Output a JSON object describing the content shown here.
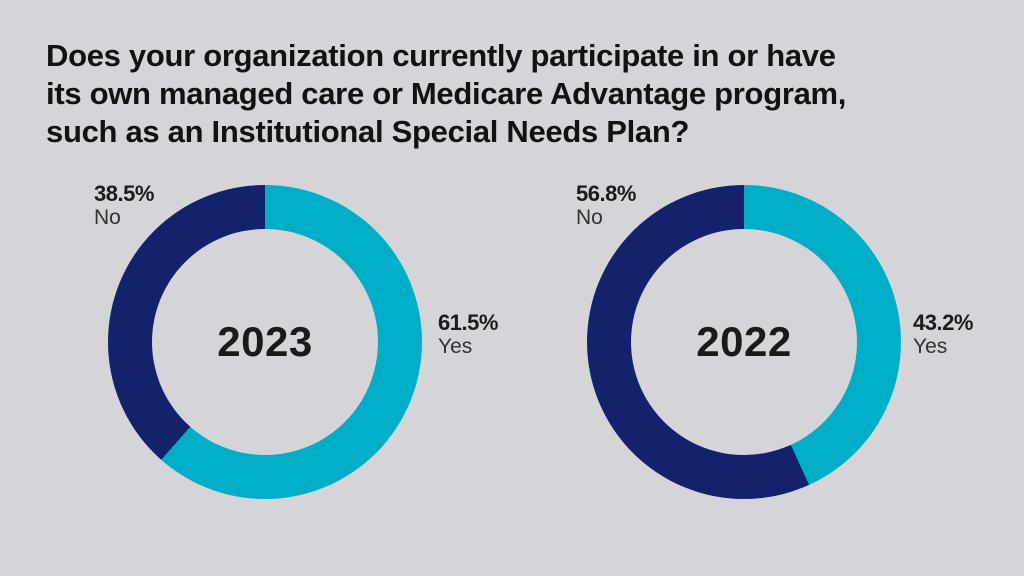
{
  "header": {
    "title_lines": [
      "Does your organization currently participate in or have",
      "its own managed care or Medicare Advantage program,",
      "such as an Institutional Special Needs Plan?"
    ]
  },
  "colors": {
    "yes_slice": "#00AEC7",
    "no_slice": "#14216B",
    "background": "#D4D4D9",
    "text": "#1A1A1A"
  },
  "chart_data": [
    {
      "type": "pie",
      "donut": true,
      "year": "2023",
      "center_label": "2023",
      "start_angle_deg": 0,
      "direction": "clockwise",
      "slices": [
        {
          "label": "Yes",
          "value": 61.5,
          "display": "61.5%",
          "color": "#00AEC7"
        },
        {
          "label": "No",
          "value": 38.5,
          "display": "38.5%",
          "color": "#14216B"
        }
      ]
    },
    {
      "type": "pie",
      "donut": true,
      "year": "2022",
      "center_label": "2022",
      "start_angle_deg": 0,
      "direction": "clockwise",
      "slices": [
        {
          "label": "Yes",
          "value": 43.2,
          "display": "43.2%",
          "color": "#00AEC7"
        },
        {
          "label": "No",
          "value": 56.8,
          "display": "56.8%",
          "color": "#14216B"
        }
      ]
    }
  ]
}
